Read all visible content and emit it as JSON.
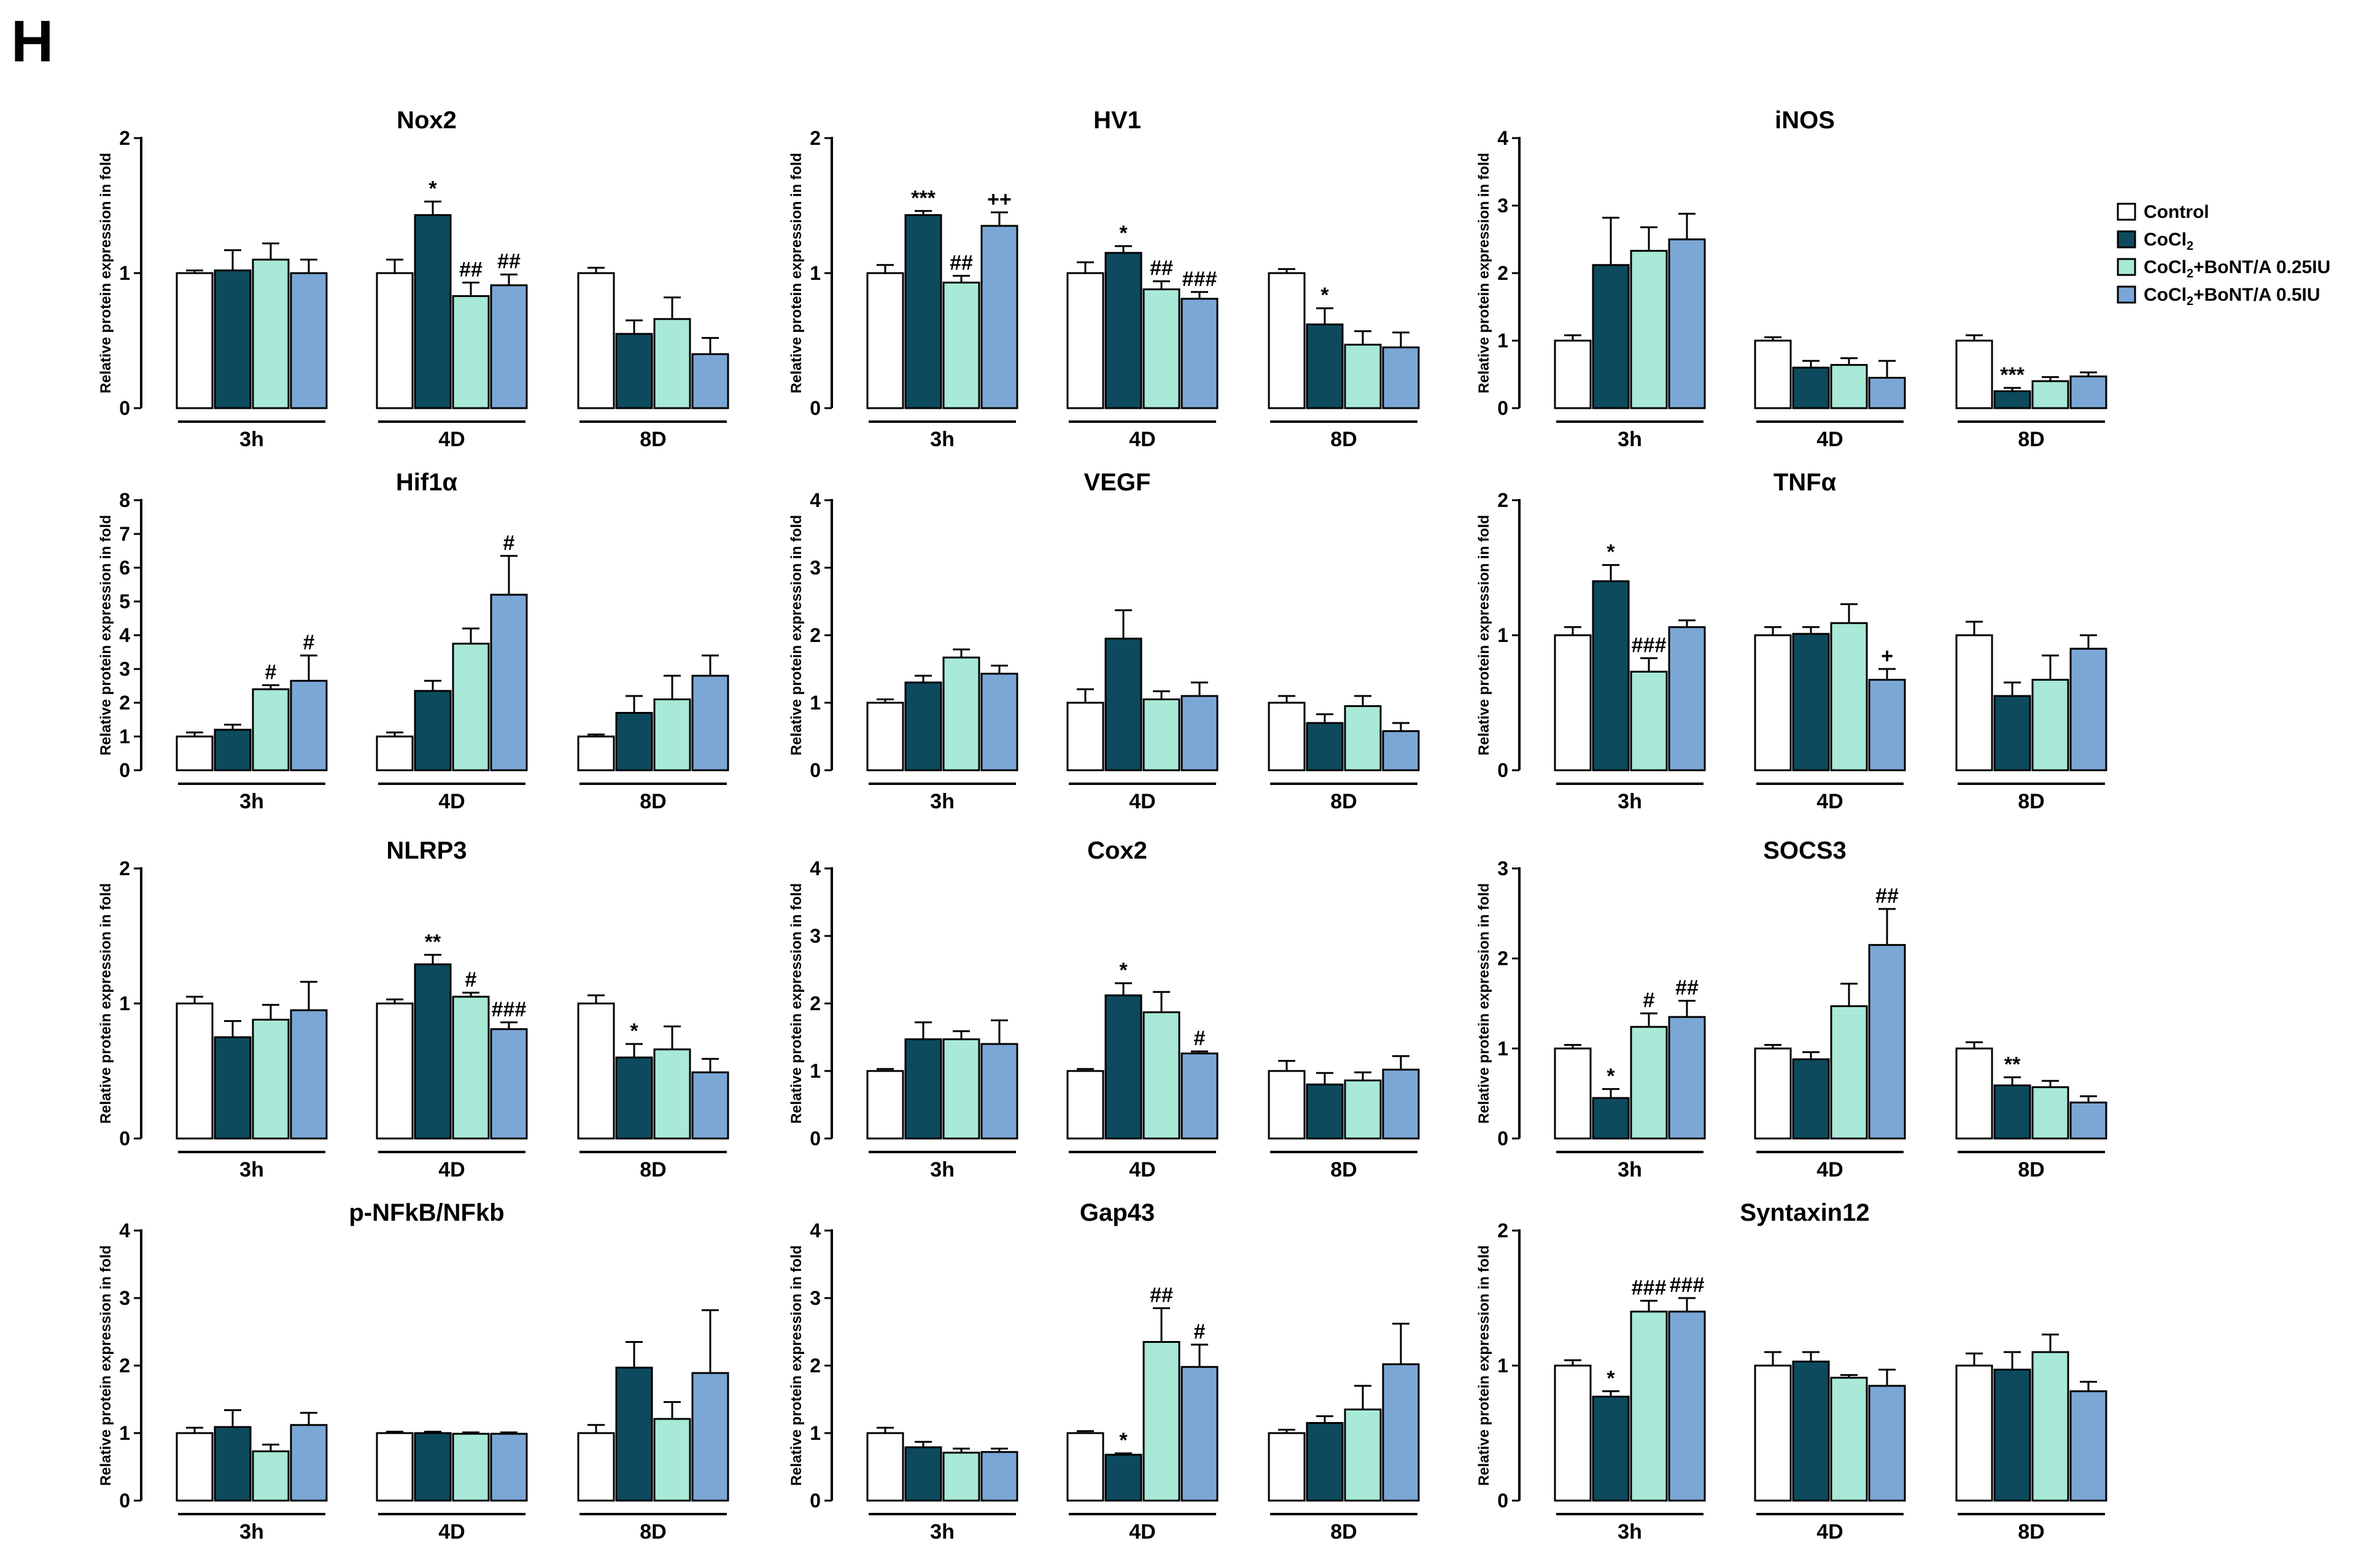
{
  "panel_label": "H",
  "legend": {
    "entries": [
      {
        "label": "Control",
        "sub": "",
        "suffix": ""
      },
      {
        "label": "CoCl",
        "sub": "2",
        "suffix": ""
      },
      {
        "label": "CoCl",
        "sub": "2",
        "suffix": "+BoNT/A 0.25IU"
      },
      {
        "label": "CoCl",
        "sub": "2",
        "suffix": "+BoNT/A 0.5IU"
      }
    ]
  },
  "colors": {
    "series": [
      "#ffffff",
      "#0d4a5e",
      "#a8e9d7",
      "#7ba7d6"
    ],
    "stroke": "#000000"
  },
  "chart_data": [
    {
      "type": "bar",
      "title": "Nox2",
      "ylabel": "Relative protein expression in fold",
      "ylim": [
        0,
        2
      ],
      "yticks": [
        0,
        1,
        2
      ],
      "categories": [
        "3h",
        "4D",
        "8D"
      ],
      "series": [
        {
          "name": "Control",
          "values": [
            1.0,
            1.0,
            1.0
          ],
          "errors": [
            0.02,
            0.1,
            0.04
          ],
          "marks": [
            "",
            "",
            ""
          ]
        },
        {
          "name": "CoCl2",
          "values": [
            1.02,
            1.43,
            0.55
          ],
          "errors": [
            0.15,
            0.1,
            0.1
          ],
          "marks": [
            "",
            "*",
            ""
          ]
        },
        {
          "name": "CoCl2+BoNT/A 0.25IU",
          "values": [
            1.1,
            0.83,
            0.66
          ],
          "errors": [
            0.12,
            0.1,
            0.16
          ],
          "marks": [
            "",
            "##",
            ""
          ]
        },
        {
          "name": "CoCl2+BoNT/A 0.5IU",
          "values": [
            1.0,
            0.91,
            0.4
          ],
          "errors": [
            0.1,
            0.08,
            0.12
          ],
          "marks": [
            "",
            "##",
            ""
          ]
        }
      ]
    },
    {
      "type": "bar",
      "title": "HV1",
      "ylabel": "Relative protein expression in fold",
      "ylim": [
        0,
        2
      ],
      "yticks": [
        0,
        1,
        2
      ],
      "categories": [
        "3h",
        "4D",
        "8D"
      ],
      "series": [
        {
          "name": "Control",
          "values": [
            1.0,
            1.0,
            1.0
          ],
          "errors": [
            0.06,
            0.08,
            0.03
          ],
          "marks": [
            "",
            "",
            ""
          ]
        },
        {
          "name": "CoCl2",
          "values": [
            1.43,
            1.15,
            0.62
          ],
          "errors": [
            0.03,
            0.05,
            0.12
          ],
          "marks": [
            "***",
            "*",
            "*"
          ]
        },
        {
          "name": "CoCl2+BoNT/A 0.25IU",
          "values": [
            0.93,
            0.88,
            0.47
          ],
          "errors": [
            0.05,
            0.06,
            0.1
          ],
          "marks": [
            "##",
            "##",
            ""
          ]
        },
        {
          "name": "CoCl2+BoNT/A 0.5IU",
          "values": [
            1.35,
            0.81,
            0.45
          ],
          "errors": [
            0.1,
            0.05,
            0.11
          ],
          "marks": [
            "++",
            "###",
            ""
          ]
        }
      ]
    },
    {
      "type": "bar",
      "title": "iNOS",
      "ylabel": "Relative protein expression in fold",
      "ylim": [
        0,
        4
      ],
      "yticks": [
        0,
        1,
        2,
        3,
        4
      ],
      "categories": [
        "3h",
        "4D",
        "8D"
      ],
      "series": [
        {
          "name": "Control",
          "values": [
            1.0,
            1.0,
            1.0
          ],
          "errors": [
            0.08,
            0.05,
            0.08
          ],
          "marks": [
            "",
            "",
            ""
          ]
        },
        {
          "name": "CoCl2",
          "values": [
            2.12,
            0.6,
            0.25
          ],
          "errors": [
            0.7,
            0.1,
            0.05
          ],
          "marks": [
            "",
            "",
            "***"
          ]
        },
        {
          "name": "CoCl2+BoNT/A 0.25IU",
          "values": [
            2.33,
            0.64,
            0.4
          ],
          "errors": [
            0.35,
            0.1,
            0.06
          ],
          "marks": [
            "",
            "",
            ""
          ]
        },
        {
          "name": "CoCl2+BoNT/A 0.5IU",
          "values": [
            2.5,
            0.45,
            0.47
          ],
          "errors": [
            0.38,
            0.25,
            0.06
          ],
          "marks": [
            "",
            "",
            ""
          ]
        }
      ]
    },
    {
      "type": "bar",
      "title": "Hif1α",
      "ylabel": "Relative protein expression in fold",
      "ylim": [
        0,
        8
      ],
      "yticks": [
        0,
        1,
        2,
        3,
        4,
        5,
        6,
        7,
        8
      ],
      "categories": [
        "3h",
        "4D",
        "8D"
      ],
      "series": [
        {
          "name": "Control",
          "values": [
            1.0,
            1.0,
            1.0
          ],
          "errors": [
            0.12,
            0.12,
            0.06
          ],
          "marks": [
            "",
            "",
            ""
          ]
        },
        {
          "name": "CoCl2",
          "values": [
            1.2,
            2.35,
            1.7
          ],
          "errors": [
            0.15,
            0.3,
            0.5
          ],
          "marks": [
            "",
            "",
            ""
          ]
        },
        {
          "name": "CoCl2+BoNT/A 0.25IU",
          "values": [
            2.4,
            3.75,
            2.1
          ],
          "errors": [
            0.12,
            0.45,
            0.7
          ],
          "marks": [
            "#",
            "",
            ""
          ]
        },
        {
          "name": "CoCl2+BoNT/A 0.5IU",
          "values": [
            2.65,
            5.2,
            2.8
          ],
          "errors": [
            0.75,
            1.15,
            0.6
          ],
          "marks": [
            "#",
            "#",
            ""
          ]
        }
      ]
    },
    {
      "type": "bar",
      "title": "VEGF",
      "ylabel": "Relative protein expression in fold",
      "ylim": [
        0,
        4
      ],
      "yticks": [
        0,
        1,
        2,
        3,
        4
      ],
      "categories": [
        "3h",
        "4D",
        "8D"
      ],
      "series": [
        {
          "name": "Control",
          "values": [
            1.0,
            1.0,
            1.0
          ],
          "errors": [
            0.05,
            0.2,
            0.1
          ],
          "marks": [
            "",
            "",
            ""
          ]
        },
        {
          "name": "CoCl2",
          "values": [
            1.3,
            1.95,
            0.7
          ],
          "errors": [
            0.1,
            0.42,
            0.13
          ],
          "marks": [
            "",
            "",
            ""
          ]
        },
        {
          "name": "CoCl2+BoNT/A 0.25IU",
          "values": [
            1.67,
            1.05,
            0.95
          ],
          "errors": [
            0.12,
            0.12,
            0.15
          ],
          "marks": [
            "",
            "",
            ""
          ]
        },
        {
          "name": "CoCl2+BoNT/A 0.5IU",
          "values": [
            1.43,
            1.1,
            0.58
          ],
          "errors": [
            0.12,
            0.2,
            0.12
          ],
          "marks": [
            "",
            "",
            ""
          ]
        }
      ]
    },
    {
      "type": "bar",
      "title": "TNFα",
      "ylabel": "Relative protein expression in fold",
      "ylim": [
        0,
        2
      ],
      "yticks": [
        0,
        1,
        2
      ],
      "categories": [
        "3h",
        "4D",
        "8D"
      ],
      "series": [
        {
          "name": "Control",
          "values": [
            1.0,
            1.0,
            1.0
          ],
          "errors": [
            0.06,
            0.06,
            0.1
          ],
          "marks": [
            "",
            "",
            ""
          ]
        },
        {
          "name": "CoCl2",
          "values": [
            1.4,
            1.01,
            0.55
          ],
          "errors": [
            0.12,
            0.05,
            0.1
          ],
          "marks": [
            "*",
            "",
            ""
          ]
        },
        {
          "name": "CoCl2+BoNT/A 0.25IU",
          "values": [
            0.73,
            1.09,
            0.67
          ],
          "errors": [
            0.1,
            0.14,
            0.18
          ],
          "marks": [
            "###",
            "",
            ""
          ]
        },
        {
          "name": "CoCl2+BoNT/A 0.5IU",
          "values": [
            1.06,
            0.67,
            0.9
          ],
          "errors": [
            0.05,
            0.08,
            0.1
          ],
          "marks": [
            "",
            "+",
            ""
          ]
        }
      ]
    },
    {
      "type": "bar",
      "title": "NLRP3",
      "ylabel": "Relative protein expression in fold",
      "ylim": [
        0,
        2
      ],
      "yticks": [
        0,
        1,
        2
      ],
      "categories": [
        "3h",
        "4D",
        "8D"
      ],
      "series": [
        {
          "name": "Control",
          "values": [
            1.0,
            1.0,
            1.0
          ],
          "errors": [
            0.05,
            0.03,
            0.06
          ],
          "marks": [
            "",
            "",
            ""
          ]
        },
        {
          "name": "CoCl2",
          "values": [
            0.75,
            1.29,
            0.6
          ],
          "errors": [
            0.12,
            0.07,
            0.1
          ],
          "marks": [
            "",
            "**",
            "*"
          ]
        },
        {
          "name": "CoCl2+BoNT/A 0.25IU",
          "values": [
            0.88,
            1.05,
            0.66
          ],
          "errors": [
            0.11,
            0.03,
            0.17
          ],
          "marks": [
            "",
            "#",
            ""
          ]
        },
        {
          "name": "CoCl2+BoNT/A 0.5IU",
          "values": [
            0.95,
            0.81,
            0.49
          ],
          "errors": [
            0.21,
            0.05,
            0.1
          ],
          "marks": [
            "",
            "###",
            ""
          ]
        }
      ]
    },
    {
      "type": "bar",
      "title": "Cox2",
      "ylabel": "Relative protein expression in fold",
      "ylim": [
        0,
        4
      ],
      "yticks": [
        0,
        1,
        2,
        3,
        4
      ],
      "categories": [
        "3h",
        "4D",
        "8D"
      ],
      "series": [
        {
          "name": "Control",
          "values": [
            1.0,
            1.0,
            1.0
          ],
          "errors": [
            0.03,
            0.03,
            0.15
          ],
          "marks": [
            "",
            "",
            ""
          ]
        },
        {
          "name": "CoCl2",
          "values": [
            1.47,
            2.12,
            0.8
          ],
          "errors": [
            0.25,
            0.18,
            0.17
          ],
          "marks": [
            "",
            "*",
            ""
          ]
        },
        {
          "name": "CoCl2+BoNT/A 0.25IU",
          "values": [
            1.47,
            1.87,
            0.86
          ],
          "errors": [
            0.12,
            0.3,
            0.12
          ],
          "marks": [
            "",
            "",
            ""
          ]
        },
        {
          "name": "CoCl2+BoNT/A 0.5IU",
          "values": [
            1.4,
            1.26,
            1.02
          ],
          "errors": [
            0.35,
            0.03,
            0.2
          ],
          "marks": [
            "",
            "#",
            ""
          ]
        }
      ]
    },
    {
      "type": "bar",
      "title": "SOCS3",
      "ylabel": "Relative protein expression in fold",
      "ylim": [
        0,
        3
      ],
      "yticks": [
        0,
        1,
        2,
        3
      ],
      "categories": [
        "3h",
        "4D",
        "8D"
      ],
      "series": [
        {
          "name": "Control",
          "values": [
            1.0,
            1.0,
            1.0
          ],
          "errors": [
            0.04,
            0.04,
            0.07
          ],
          "marks": [
            "",
            "",
            ""
          ]
        },
        {
          "name": "CoCl2",
          "values": [
            0.45,
            0.88,
            0.59
          ],
          "errors": [
            0.1,
            0.08,
            0.09
          ],
          "marks": [
            "*",
            "",
            "**"
          ]
        },
        {
          "name": "CoCl2+BoNT/A 0.25IU",
          "values": [
            1.24,
            1.47,
            0.57
          ],
          "errors": [
            0.15,
            0.25,
            0.07
          ],
          "marks": [
            "#",
            "",
            ""
          ]
        },
        {
          "name": "CoCl2+BoNT/A 0.5IU",
          "values": [
            1.35,
            2.15,
            0.4
          ],
          "errors": [
            0.18,
            0.4,
            0.07
          ],
          "marks": [
            "##",
            "##",
            ""
          ]
        }
      ]
    },
    {
      "type": "bar",
      "title": "p-NFkB/NFkb",
      "ylabel": "Relative protein expression in fold",
      "ylim": [
        0,
        4
      ],
      "yticks": [
        0,
        1,
        2,
        3,
        4
      ],
      "categories": [
        "3h",
        "4D",
        "8D"
      ],
      "series": [
        {
          "name": "Control",
          "values": [
            1.0,
            1.0,
            1.0
          ],
          "errors": [
            0.08,
            0.02,
            0.12
          ],
          "marks": [
            "",
            "",
            ""
          ]
        },
        {
          "name": "CoCl2",
          "values": [
            1.09,
            1.0,
            1.97
          ],
          "errors": [
            0.25,
            0.02,
            0.38
          ],
          "marks": [
            "",
            "",
            ""
          ]
        },
        {
          "name": "CoCl2+BoNT/A 0.25IU",
          "values": [
            0.73,
            0.99,
            1.21
          ],
          "errors": [
            0.1,
            0.02,
            0.25
          ],
          "marks": [
            "",
            "",
            ""
          ]
        },
        {
          "name": "CoCl2+BoNT/A 0.5IU",
          "values": [
            1.12,
            0.99,
            1.89
          ],
          "errors": [
            0.18,
            0.02,
            0.93
          ],
          "marks": [
            "",
            "",
            ""
          ]
        }
      ]
    },
    {
      "type": "bar",
      "title": "Gap43",
      "ylabel": "Relative protein expression in fold",
      "ylim": [
        0,
        4
      ],
      "yticks": [
        0,
        1,
        2,
        3,
        4
      ],
      "categories": [
        "3h",
        "4D",
        "8D"
      ],
      "series": [
        {
          "name": "Control",
          "values": [
            1.0,
            1.0,
            1.0
          ],
          "errors": [
            0.08,
            0.03,
            0.05
          ],
          "marks": [
            "",
            "",
            ""
          ]
        },
        {
          "name": "CoCl2",
          "values": [
            0.79,
            0.68,
            1.15
          ],
          "errors": [
            0.08,
            0.02,
            0.1
          ],
          "marks": [
            "",
            "*",
            ""
          ]
        },
        {
          "name": "CoCl2+BoNT/A 0.25IU",
          "values": [
            0.71,
            2.35,
            1.35
          ],
          "errors": [
            0.06,
            0.5,
            0.35
          ],
          "marks": [
            "",
            "##",
            ""
          ]
        },
        {
          "name": "CoCl2+BoNT/A 0.5IU",
          "values": [
            0.72,
            1.98,
            2.02
          ],
          "errors": [
            0.05,
            0.33,
            0.6
          ],
          "marks": [
            "",
            "#",
            ""
          ]
        }
      ]
    },
    {
      "type": "bar",
      "title": "Syntaxin12",
      "ylabel": "Relative protein expression in fold",
      "ylim": [
        0,
        2
      ],
      "yticks": [
        0,
        1,
        2
      ],
      "categories": [
        "3h",
        "4D",
        "8D"
      ],
      "series": [
        {
          "name": "Control",
          "values": [
            1.0,
            1.0,
            1.0
          ],
          "errors": [
            0.04,
            0.1,
            0.09
          ],
          "marks": [
            "",
            "",
            ""
          ]
        },
        {
          "name": "CoCl2",
          "values": [
            0.77,
            1.03,
            0.97
          ],
          "errors": [
            0.04,
            0.07,
            0.13
          ],
          "marks": [
            "*",
            "",
            ""
          ]
        },
        {
          "name": "CoCl2+BoNT/A 0.25IU",
          "values": [
            1.4,
            0.91,
            1.1
          ],
          "errors": [
            0.08,
            0.02,
            0.13
          ],
          "marks": [
            "###",
            "",
            ""
          ]
        },
        {
          "name": "CoCl2+BoNT/A 0.5IU",
          "values": [
            1.4,
            0.85,
            0.81
          ],
          "errors": [
            0.1,
            0.12,
            0.07
          ],
          "marks": [
            "###",
            "",
            ""
          ]
        }
      ]
    }
  ]
}
